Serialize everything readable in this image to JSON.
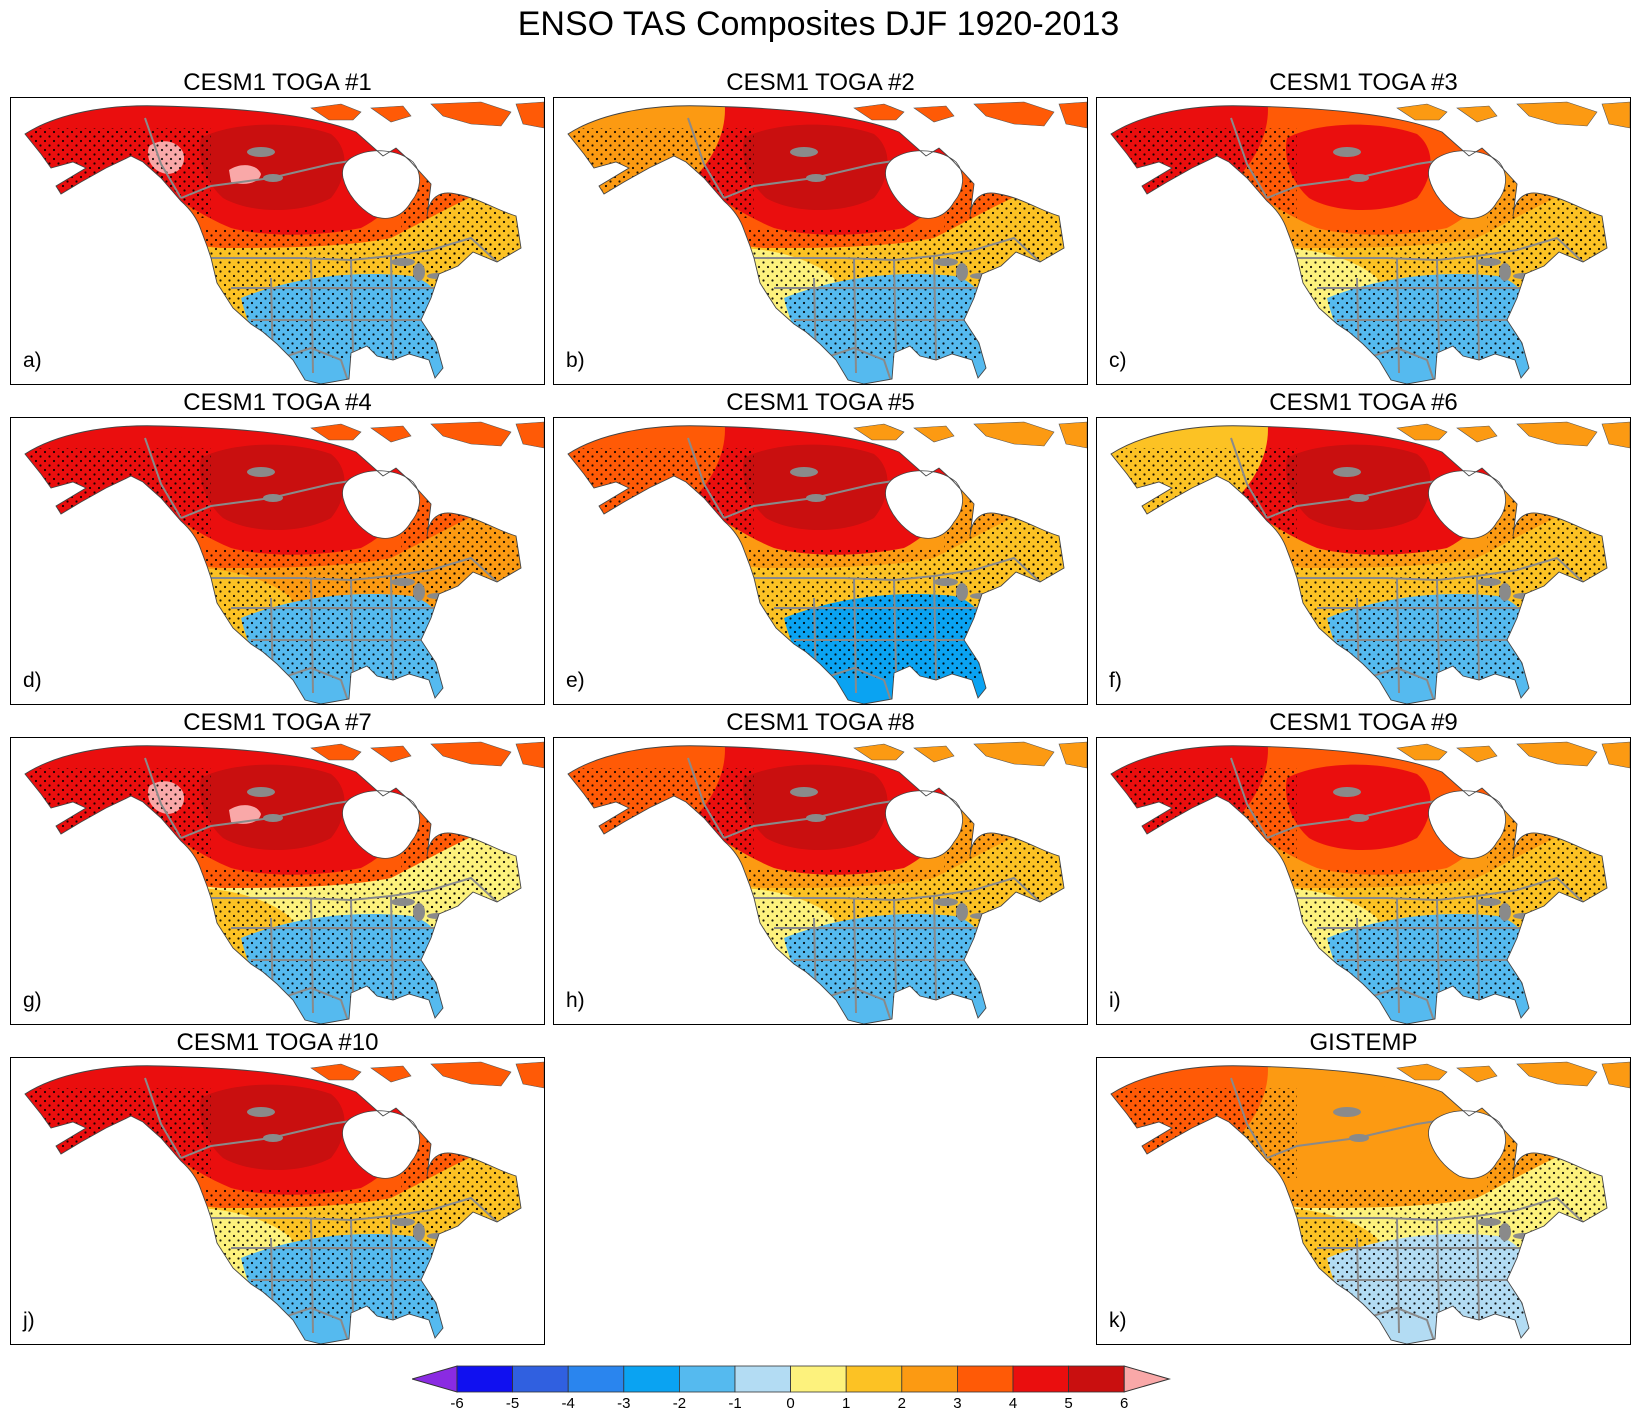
{
  "figure": {
    "title": "ENSO TAS Composites DJF 1920-2013"
  },
  "panels": [
    {
      "title": "CESM1 TOGA #1",
      "label": "a)",
      "alaska": "#ea0e0e",
      "canada": "#ea0e0e",
      "core": "#c90f0f",
      "north": "#ff5a06",
      "east": "#fcc224",
      "west": "#fcc224",
      "south": "#55baef",
      "hot_spot": "#f9a8a8"
    },
    {
      "title": "CESM1 TOGA #2",
      "label": "b)",
      "alaska": "#fc9a12",
      "canada": "#ea0e0e",
      "core": "#c90f0f",
      "north": "#ff5a06",
      "east": "#fcc224",
      "west": "#fdf27d",
      "south": "#55baef",
      "hot_spot": ""
    },
    {
      "title": "CESM1 TOGA #3",
      "label": "c)",
      "alaska": "#ea0e0e",
      "canada": "#ff5a06",
      "core": "#ea0e0e",
      "north": "#fc9a12",
      "east": "#fcc224",
      "west": "#fdf27d",
      "south": "#55baef",
      "hot_spot": ""
    },
    {
      "title": "CESM1 TOGA #4",
      "label": "d)",
      "alaska": "#ea0e0e",
      "canada": "#ea0e0e",
      "core": "#c90f0f",
      "north": "#ff5a06",
      "east": "#fc9a12",
      "west": "#fcc224",
      "south": "#55baef",
      "hot_spot": ""
    },
    {
      "title": "CESM1 TOGA #5",
      "label": "e)",
      "alaska": "#ff5a06",
      "canada": "#ea0e0e",
      "core": "#c90f0f",
      "north": "#fc9a12",
      "east": "#fcc224",
      "west": "#fcc224",
      "south": "#0aa3f2",
      "hot_spot": ""
    },
    {
      "title": "CESM1 TOGA #6",
      "label": "f)",
      "alaska": "#fcc224",
      "canada": "#ea0e0e",
      "core": "#c90f0f",
      "north": "#fc9a12",
      "east": "#fcc224",
      "west": "#fcc224",
      "south": "#55baef",
      "hot_spot": ""
    },
    {
      "title": "CESM1 TOGA #7",
      "label": "g)",
      "alaska": "#ea0e0e",
      "canada": "#ea0e0e",
      "core": "#c90f0f",
      "north": "#ff5a06",
      "east": "#fdf27d",
      "west": "#fcc224",
      "south": "#55baef",
      "hot_spot": "#f9a8a8"
    },
    {
      "title": "CESM1 TOGA #8",
      "label": "h)",
      "alaska": "#ff5a06",
      "canada": "#ea0e0e",
      "core": "#c90f0f",
      "north": "#fc9a12",
      "east": "#fcc224",
      "west": "#fdf27d",
      "south": "#55baef",
      "hot_spot": ""
    },
    {
      "title": "CESM1 TOGA #9",
      "label": "i)",
      "alaska": "#ea0e0e",
      "canada": "#ff5a06",
      "core": "#ea0e0e",
      "north": "#fc9a12",
      "east": "#fcc224",
      "west": "#fdf27d",
      "south": "#55baef",
      "hot_spot": ""
    },
    {
      "title": "CESM1 TOGA #10",
      "label": "j)",
      "alaska": "#ea0e0e",
      "canada": "#ea0e0e",
      "core": "#c90f0f",
      "north": "#ff5a06",
      "east": "#fcc224",
      "west": "#fdf27d",
      "south": "#55baef",
      "hot_spot": ""
    },
    {
      "title": "GISTEMP",
      "label": "k)",
      "alaska": "#ff5a06",
      "canada": "#fc9a12",
      "core": "#fc9a12",
      "north": "#fc9a12",
      "east": "#fdf27d",
      "west": "#fcc224",
      "south": "#b3dcf3",
      "hot_spot": ""
    }
  ],
  "colorbar": {
    "ticks": [
      "-6",
      "-5",
      "-4",
      "-3",
      "-2",
      "-1",
      "0",
      "1",
      "2",
      "3",
      "4",
      "5",
      "6"
    ],
    "low_end_color": "#8a2be2",
    "high_end_color": "#f9a8a8",
    "colors": [
      "#1010f0",
      "#3060e0",
      "#2a85ee",
      "#0aa3f2",
      "#55baef",
      "#b3dcf3",
      "#fdf27d",
      "#fcc224",
      "#fc9a12",
      "#ff5a06",
      "#ea0e0e",
      "#c90f0f"
    ]
  }
}
